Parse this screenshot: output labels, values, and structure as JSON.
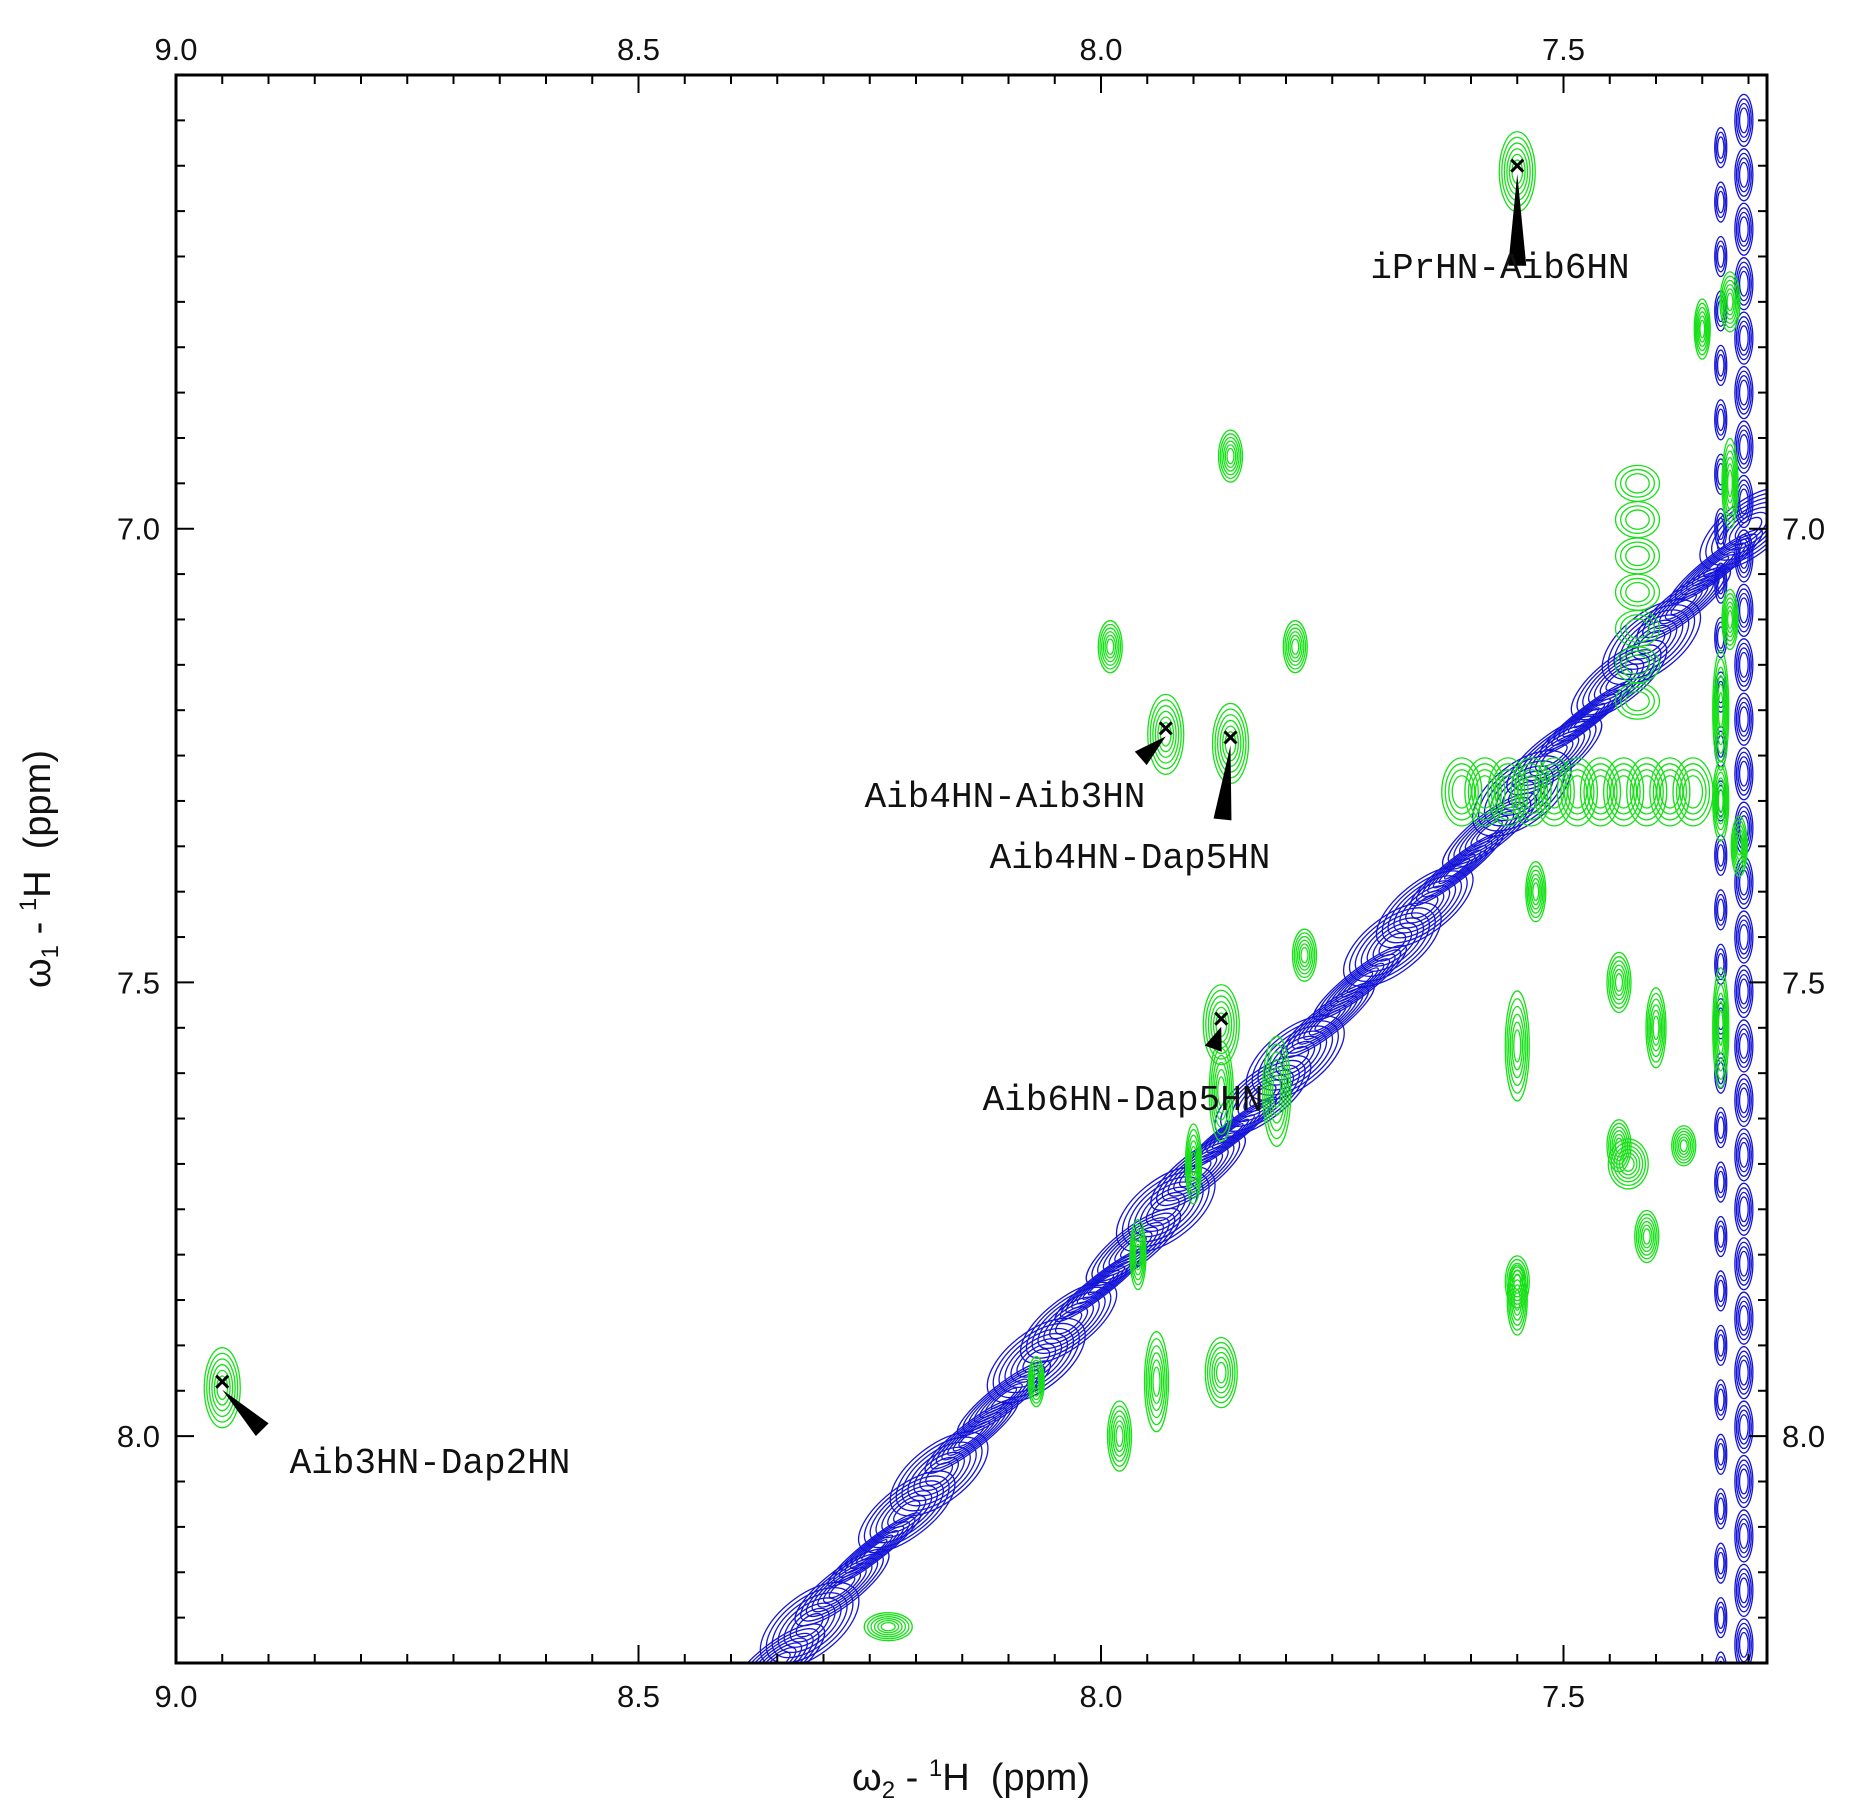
{
  "chart_data": {
    "type": "contour",
    "x_axis": {
      "label": "ω2 - 1H  (ppm)",
      "range": [
        9.0,
        7.28
      ],
      "major_ticks": [
        9.0,
        8.5,
        8.0,
        7.5
      ],
      "tick_labels": [
        "9.0",
        "8.5",
        "8.0",
        "7.5"
      ],
      "positions": [
        "top",
        "bottom"
      ]
    },
    "y_axis": {
      "label": "ω1 - 1H  (ppm)",
      "range": [
        6.5,
        8.25
      ],
      "major_ticks": [
        7.0,
        7.5,
        8.0
      ],
      "tick_labels": [
        "7.0",
        "7.5",
        "8.0"
      ],
      "positions": [
        "left",
        "right"
      ]
    },
    "series": [
      {
        "name": "",
        "color": "#1414d8"
      },
      {
        "name": "",
        "color": "#16e016"
      }
    ],
    "diagonal_from": [
      8.35,
      8.25
    ],
    "diagonal_to": [
      7.3,
      7.0
    ],
    "assigned_peaks": [
      {
        "label": "iPrHN-Aib6HN",
        "x": 7.55,
        "y": 6.6
      },
      {
        "label": "Aib4HN-Aib3HN",
        "x": 7.93,
        "y": 7.22
      },
      {
        "label": "Aib4HN-Dap5HN",
        "x": 7.86,
        "y": 7.23
      },
      {
        "label": "Aib6HN-Dap5HN",
        "x": 7.87,
        "y": 7.54
      },
      {
        "label": "Aib3HN-Dap2HN",
        "x": 8.95,
        "y": 7.94
      }
    ],
    "unlabeled_peaks": [
      {
        "x": 7.86,
        "y": 6.92
      },
      {
        "x": 7.99,
        "y": 7.13
      },
      {
        "x": 7.79,
        "y": 7.13
      },
      {
        "x": 7.78,
        "y": 7.47
      },
      {
        "x": 7.55,
        "y": 7.83
      },
      {
        "x": 7.44,
        "y": 7.68
      },
      {
        "x": 7.41,
        "y": 7.78
      }
    ],
    "grid": false,
    "legend": "none"
  }
}
